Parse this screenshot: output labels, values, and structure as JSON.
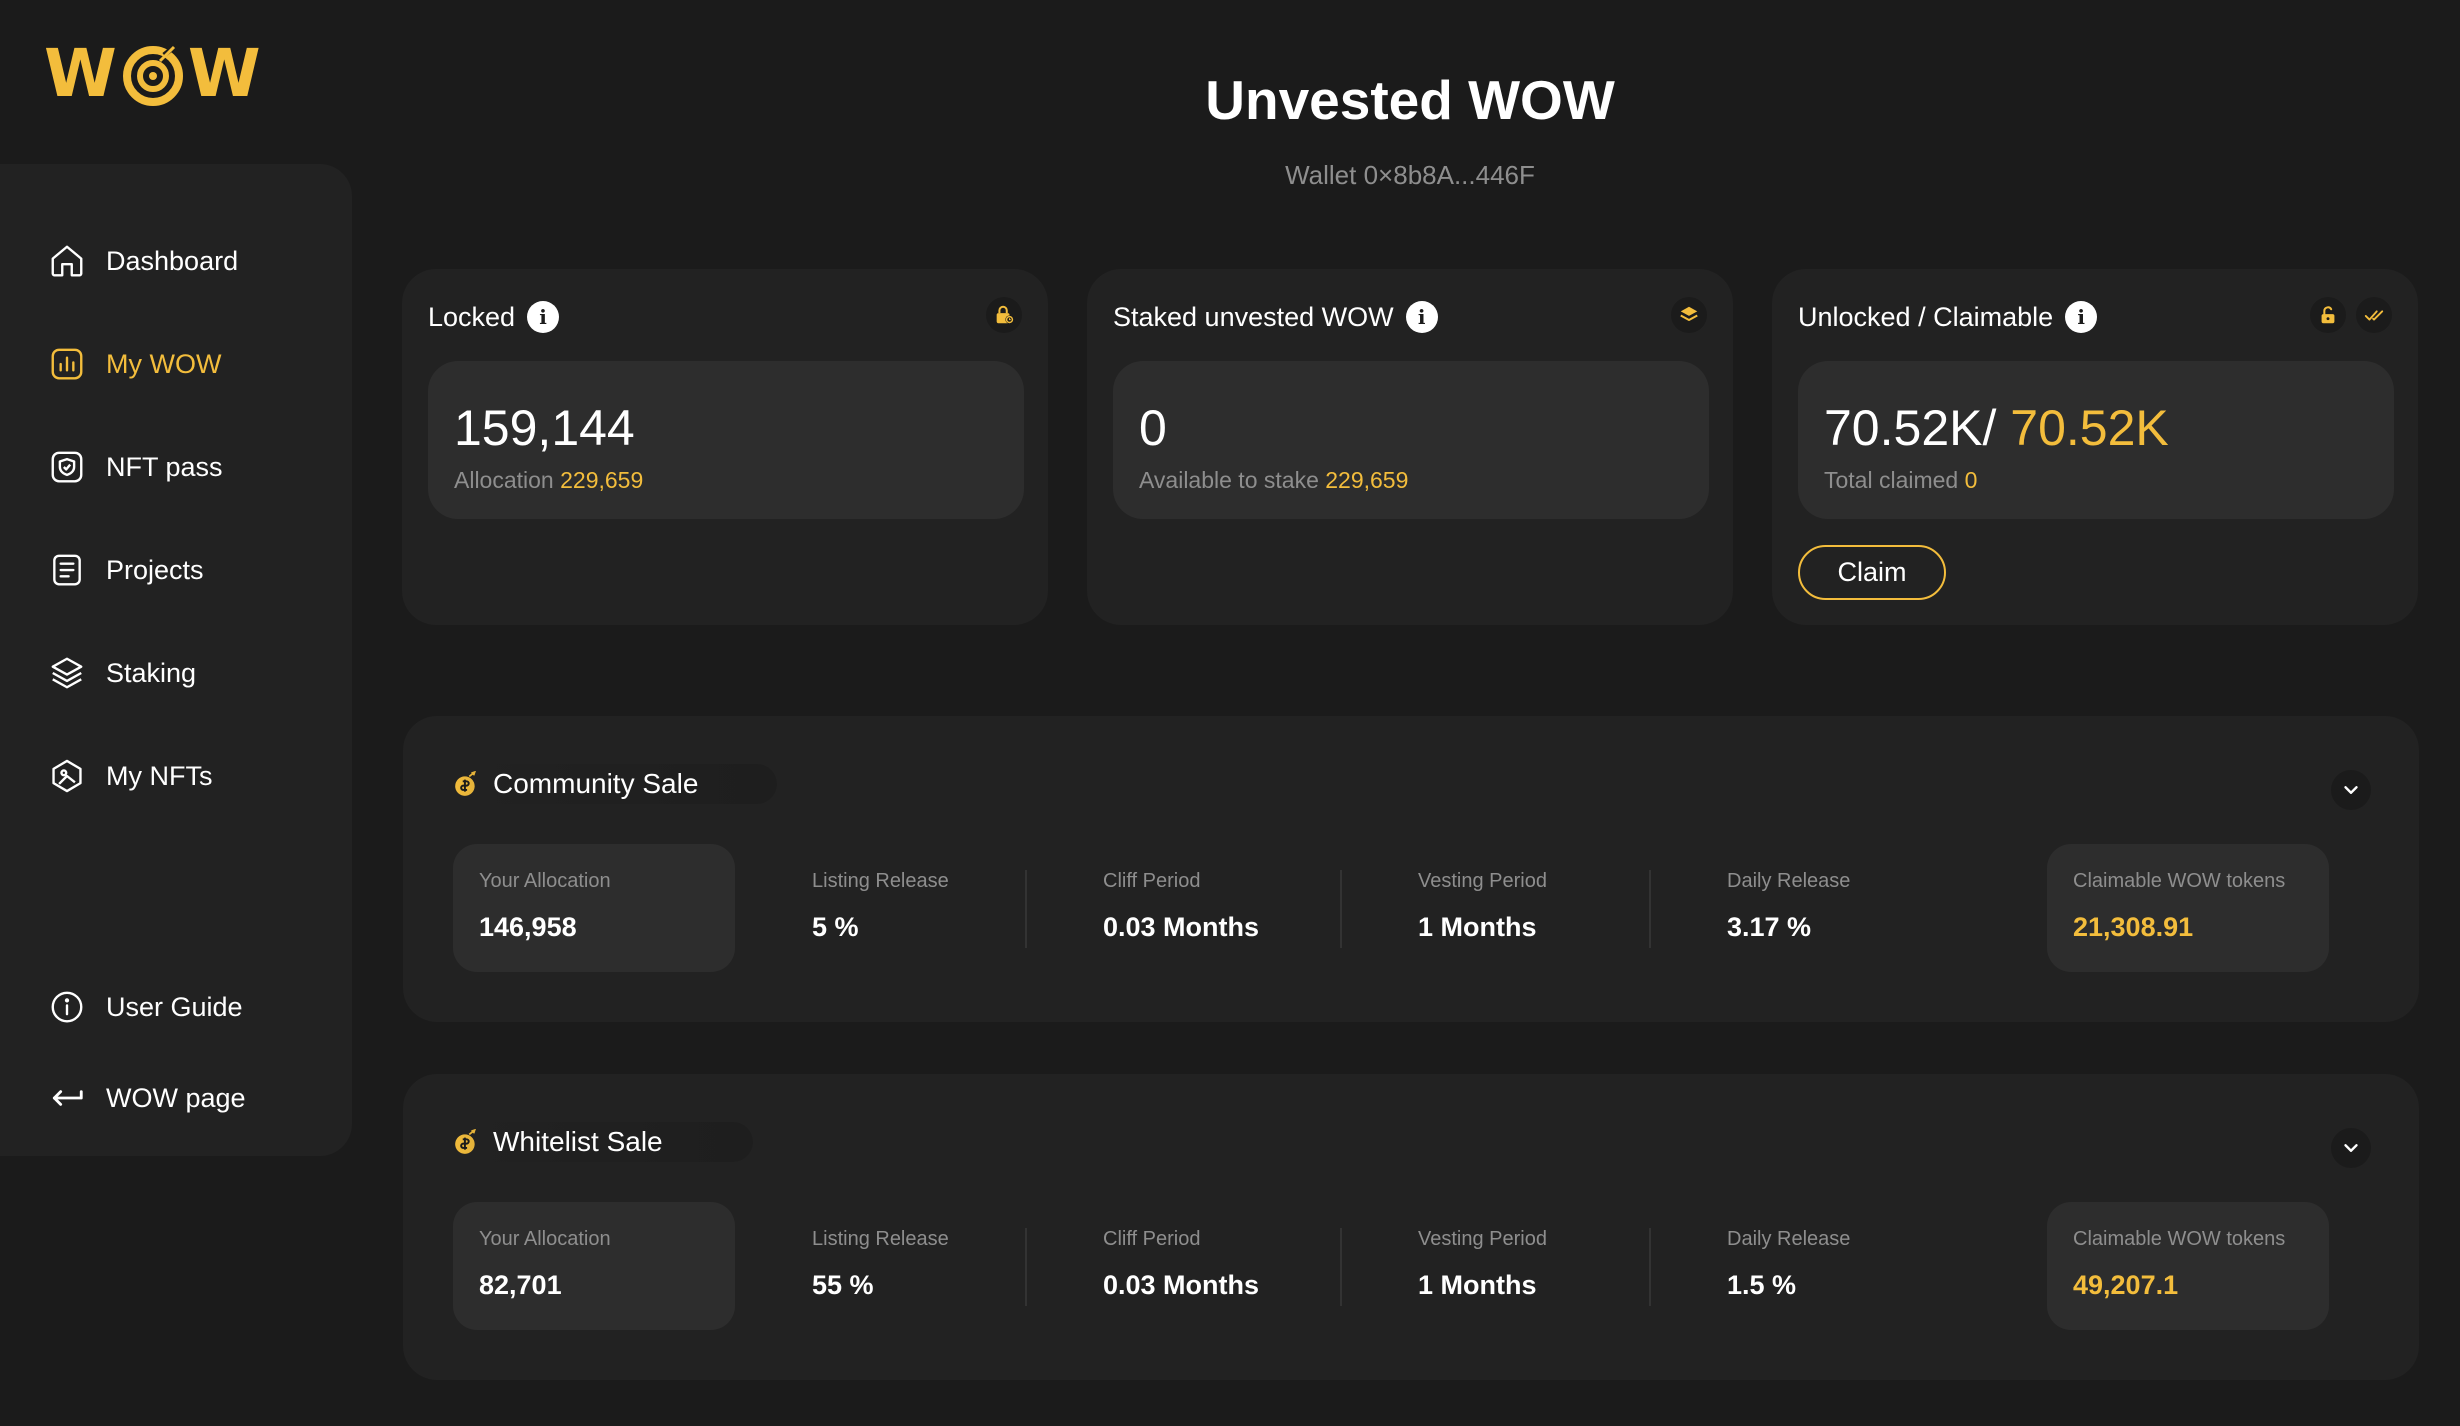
{
  "brand": {
    "logo_text_left": "W",
    "logo_text_right": "W",
    "color": "#f3bd3c"
  },
  "sidebar": {
    "items": [
      {
        "label": "Dashboard",
        "icon": "home-icon",
        "active": false
      },
      {
        "label": "My WOW",
        "icon": "bar-chart-icon",
        "active": true
      },
      {
        "label": "NFT pass",
        "icon": "shield-icon",
        "active": false
      },
      {
        "label": "Projects",
        "icon": "document-icon",
        "active": false
      },
      {
        "label": "Staking",
        "icon": "layers-icon",
        "active": false
      },
      {
        "label": "My NFTs",
        "icon": "nft-hexagon-icon",
        "active": false
      }
    ],
    "bottom_items": [
      {
        "label": "User Guide",
        "icon": "info-circle-icon"
      },
      {
        "label": "WOW page",
        "icon": "arrow-back-icon"
      }
    ]
  },
  "header": {
    "title": "Unvested WOW",
    "wallet": "Wallet 0×8b8A...446F"
  },
  "cards": {
    "locked": {
      "title": "Locked",
      "corner_icon": "lock-icon",
      "value": "159,144",
      "sub_label": "Allocation",
      "sub_value": "229,659"
    },
    "staked": {
      "title": "Staked unvested WOW",
      "corner_icon": "layers-icon",
      "value": "0",
      "sub_label": "Available to stake",
      "sub_value": "229,659"
    },
    "unlocked": {
      "title": "Unlocked / Claimable",
      "corner_icons": [
        "unlock-icon",
        "double-check-icon"
      ],
      "value_left": "70.52K/",
      "value_right": "70.52K",
      "sub_label": "Total claimed",
      "sub_value": "0",
      "claim_label": "Claim"
    }
  },
  "sales": [
    {
      "title": "Community Sale",
      "your_allocation_label": "Your Allocation",
      "your_allocation": "146,958",
      "listing_release_label": "Listing Release",
      "listing_release": "5 %",
      "cliff_period_label": "Cliff Period",
      "cliff_period": "0.03 Months",
      "vesting_period_label": "Vesting Period",
      "vesting_period": "1 Months",
      "daily_release_label": "Daily Release",
      "daily_release": "3.17 %",
      "claimable_label": "Claimable WOW tokens",
      "claimable": "21,308.91"
    },
    {
      "title": "Whitelist Sale",
      "your_allocation_label": "Your Allocation",
      "your_allocation": "82,701",
      "listing_release_label": "Listing Release",
      "listing_release": "55 %",
      "cliff_period_label": "Cliff Period",
      "cliff_period": "0.03 Months",
      "vesting_period_label": "Vesting Period",
      "vesting_period": "1 Months",
      "daily_release_label": "Daily Release",
      "daily_release": "1.5 %",
      "claimable_label": "Claimable WOW tokens",
      "claimable": "49,207.1"
    }
  ],
  "colors": {
    "accent": "#f3bd3c",
    "background": "#1b1b1b",
    "panel": "#222222",
    "inner": "#2d2d2d",
    "muted": "#8e8e8e"
  }
}
